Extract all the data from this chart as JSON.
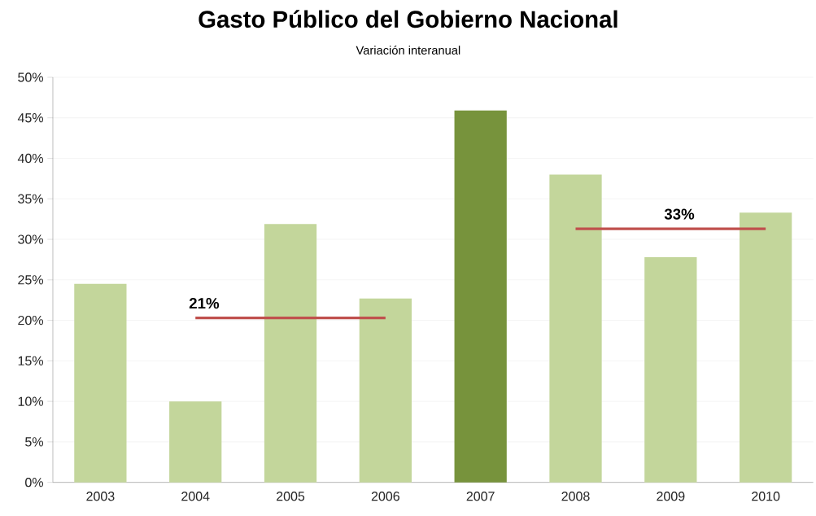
{
  "chart_data": {
    "type": "bar",
    "title": "Gasto Público del Gobierno Nacional",
    "subtitle": "Variación interanual",
    "categories": [
      "2003",
      "2004",
      "2005",
      "2006",
      "2007",
      "2008",
      "2009",
      "2010"
    ],
    "series": [
      {
        "values": [
          24.5,
          10.0,
          31.9,
          22.7,
          45.9,
          38.0,
          27.8,
          33.3
        ],
        "colors": [
          "#c3d69b",
          "#c3d69b",
          "#c3d69b",
          "#c3d69b",
          "#77933c",
          "#c3d69b",
          "#c3d69b",
          "#c3d69b"
        ]
      },
      {
        "type": "line",
        "color": "#c0504d",
        "values": [
          null,
          20.3,
          20.3,
          20.3,
          null,
          null,
          null,
          null
        ]
      },
      {
        "type": "line",
        "color": "#c0504d",
        "values": [
          null,
          null,
          null,
          null,
          null,
          31.3,
          31.3,
          31.3
        ]
      }
    ],
    "annotations": [
      {
        "text": "21%",
        "x": "2004",
        "y": 20.3
      },
      {
        "text": "33%",
        "x": "2009",
        "y": 31.3
      }
    ],
    "ylim": [
      0,
      50
    ],
    "yticks": [
      {
        "value": 0,
        "label": "0%"
      },
      {
        "value": 5,
        "label": "5%"
      },
      {
        "value": 10,
        "label": "10%"
      },
      {
        "value": 15,
        "label": "15%"
      },
      {
        "value": 20,
        "label": "20%"
      },
      {
        "value": 25,
        "label": "25%"
      },
      {
        "value": 30,
        "label": "30%"
      },
      {
        "value": 35,
        "label": "35%"
      },
      {
        "value": 40,
        "label": "40%"
      },
      {
        "value": 45,
        "label": "45%"
      },
      {
        "value": 50,
        "label": "50%"
      }
    ],
    "grid": "y",
    "marker": "none",
    "line_style": "solid"
  }
}
